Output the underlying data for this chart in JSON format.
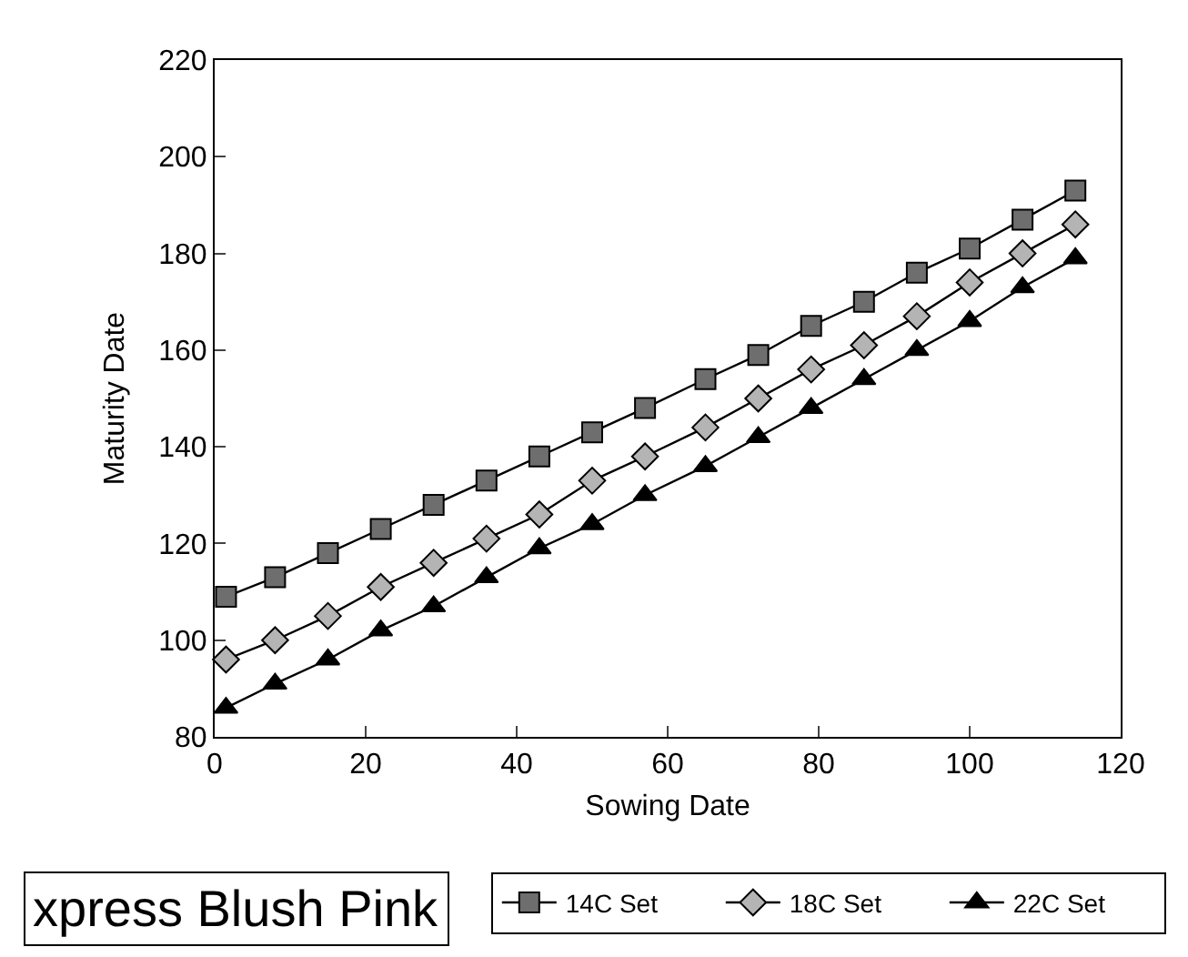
{
  "chart_data": {
    "type": "line",
    "xlabel": "Sowing Date",
    "ylabel": "Maturity Date",
    "annotations": [
      "xpress Blush Pink"
    ],
    "x": [
      1.5,
      8,
      15,
      22,
      29,
      36,
      43,
      50,
      57,
      65,
      72,
      79,
      86,
      93,
      100,
      107,
      114
    ],
    "series": [
      {
        "name": "14C Set",
        "color": "#6e6e6e",
        "marker": "square",
        "values": [
          109,
          113,
          118,
          123,
          128,
          133,
          138,
          143,
          148,
          154,
          159,
          165,
          170,
          176,
          181,
          187,
          193
        ]
      },
      {
        "name": "18C Set",
        "color": "#b4b4b4",
        "marker": "diamond",
        "values": [
          96,
          100,
          105,
          111,
          116,
          121,
          126,
          133,
          138,
          144,
          150,
          156,
          161,
          167,
          174,
          180,
          186
        ]
      },
      {
        "name": "22C Set",
        "color": "#000000",
        "marker": "triangle",
        "values": [
          86,
          91,
          96,
          102,
          107,
          113,
          119,
          124,
          130,
          136,
          142,
          148,
          154,
          160,
          166,
          173,
          179
        ]
      }
    ],
    "xlim": [
      0,
      120
    ],
    "xticks": [
      0,
      20,
      40,
      60,
      80,
      100,
      120
    ],
    "ylim": [
      80,
      220
    ],
    "yticks": [
      80,
      100,
      120,
      140,
      160,
      180,
      200,
      220
    ],
    "grid": false,
    "legend": "bottom right",
    "line_style": "solid"
  }
}
